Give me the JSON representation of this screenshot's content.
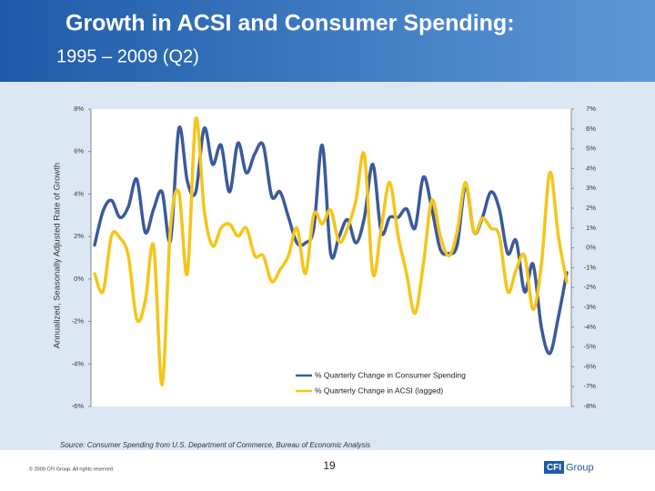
{
  "chart_data": {
    "type": "line",
    "title": "Growth in ACSI and Consumer Spending:",
    "subtitle": "1995 – 2009 (Q2)",
    "y_label": "Annualized, Seasonally Adjusted Rate of Growth",
    "categories": [
      null,
      null,
      null,
      null,
      null,
      null,
      null,
      null,
      null,
      null,
      null,
      null,
      null,
      null,
      null,
      null,
      null,
      null,
      null,
      null,
      null,
      null,
      null,
      null,
      null,
      null,
      null,
      null,
      null,
      null,
      null,
      null,
      null,
      null,
      null,
      null,
      null,
      null,
      null,
      null,
      null,
      null,
      null,
      null,
      null,
      null,
      null,
      null,
      null,
      null,
      null,
      null,
      null,
      null,
      null,
      null,
      null
    ],
    "series": [
      {
        "name": "% Quarterly Change in Consumer Spending",
        "color": "#3a5a9c",
        "axis": "y",
        "values": [
          1.6,
          3.2,
          3.7,
          2.9,
          3.4,
          4.7,
          2.2,
          3.3,
          4.1,
          1.8,
          7.1,
          4.6,
          4.1,
          7.1,
          5.4,
          6.3,
          4.1,
          6.4,
          5.0,
          5.9,
          6.3,
          3.9,
          4.1,
          2.9,
          1.7,
          1.7,
          2.4,
          6.3,
          1.2,
          2.0,
          2.8,
          1.7,
          2.9,
          5.4,
          2.2,
          2.9,
          2.9,
          3.3,
          2.4,
          4.8,
          3.3,
          1.4,
          1.2,
          1.6,
          4.4,
          2.2,
          2.9,
          4.1,
          3.3,
          1.2,
          1.8,
          -0.6,
          0.7,
          -2.3,
          -3.5,
          -1.8,
          0.3
        ]
      },
      {
        "name": "% Quarterly Change in ACSI (lagged)",
        "color": "#f5c518",
        "axis": "y2",
        "values": [
          -1.3,
          -2.2,
          0.6,
          0.5,
          -0.4,
          -3.6,
          -2.7,
          0.1,
          -6.9,
          1.0,
          2.8,
          -1.3,
          6.5,
          1.9,
          0.1,
          1.0,
          1.2,
          0.6,
          1.0,
          -0.4,
          -0.4,
          -1.7,
          -1.1,
          -0.4,
          1.0,
          -1.3,
          1.7,
          1.2,
          1.9,
          0.3,
          1.0,
          2.4,
          4.7,
          -1.3,
          1.0,
          3.3,
          0.6,
          -1.3,
          -3.3,
          -0.8,
          2.4,
          0.6,
          -0.4,
          0.8,
          3.3,
          0.8,
          1.5,
          1.0,
          0.6,
          -2.2,
          -1.1,
          -0.4,
          -3.1,
          -0.8,
          3.8,
          0.6,
          -1.7
        ]
      }
    ],
    "ylim": [
      -6,
      8
    ],
    "yticks": [
      {
        "value": -6,
        "label": "-6%"
      },
      {
        "value": -4,
        "label": "-4%"
      },
      {
        "value": -2,
        "label": "-2%"
      },
      {
        "value": 0,
        "label": "0%"
      },
      {
        "value": 2,
        "label": "2%"
      },
      {
        "value": 4,
        "label": "4%"
      },
      {
        "value": 6,
        "label": "6%"
      },
      {
        "value": 8,
        "label": "8%"
      }
    ],
    "y2lim": [
      -8,
      7
    ],
    "y2ticks": [
      {
        "value": -8,
        "label": "-8%"
      },
      {
        "value": -7,
        "label": "-7%"
      },
      {
        "value": -6,
        "label": "-6%"
      },
      {
        "value": -5,
        "label": "-5%"
      },
      {
        "value": -4,
        "label": "-4%"
      },
      {
        "value": -3,
        "label": "-3%"
      },
      {
        "value": -2,
        "label": "-2%"
      },
      {
        "value": -1,
        "label": "-1%"
      },
      {
        "value": 0,
        "label": "0%"
      },
      {
        "value": 1,
        "label": "1%"
      },
      {
        "value": 2,
        "label": "2%"
      },
      {
        "value": 3,
        "label": "3%"
      },
      {
        "value": 4,
        "label": "4%"
      },
      {
        "value": 5,
        "label": "5%"
      },
      {
        "value": 6,
        "label": "6%"
      },
      {
        "value": 7,
        "label": "7%"
      }
    ],
    "grid": false
  },
  "slide": {
    "source": "Source:   Consumer Spending from U.S. Department of Commerce, Bureau of Economic Analysis",
    "copyright": "© 2009 CFI Group.  All rights reserved.",
    "page_number": "19",
    "logo_mark": "CFI",
    "logo_text": "Group"
  }
}
